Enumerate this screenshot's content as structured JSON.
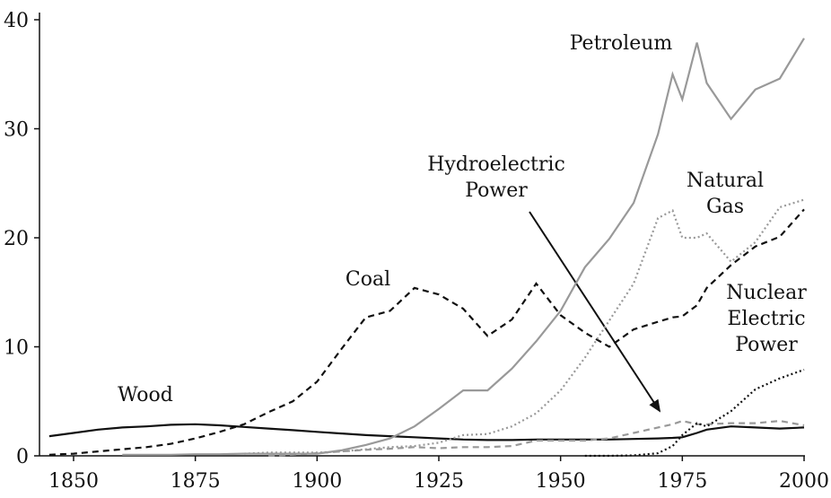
{
  "chart_data": {
    "type": "line",
    "x": [
      1845,
      1850,
      1855,
      1860,
      1865,
      1870,
      1875,
      1880,
      1885,
      1890,
      1895,
      1900,
      1905,
      1910,
      1915,
      1920,
      1925,
      1930,
      1935,
      1940,
      1945,
      1950,
      1955,
      1960,
      1965,
      1970,
      1973,
      1975,
      1978,
      1980,
      1985,
      1990,
      1995,
      2000
    ],
    "xlim": [
      1843,
      2000
    ],
    "xticks": [
      1850,
      1875,
      1900,
      1925,
      1950,
      1975,
      2000
    ],
    "ylim": [
      0,
      40
    ],
    "yticks": [
      0,
      10,
      20,
      30,
      40
    ],
    "series": [
      {
        "name": "Wood",
        "color": "#111111",
        "style": "solid",
        "values": [
          1.8,
          2.1,
          2.4,
          2.6,
          2.7,
          2.85,
          2.9,
          2.8,
          2.65,
          2.5,
          2.35,
          2.2,
          2.05,
          1.9,
          1.8,
          1.7,
          1.6,
          1.5,
          1.45,
          1.45,
          1.5,
          1.5,
          1.5,
          1.5,
          1.55,
          1.6,
          1.65,
          1.7,
          2.1,
          2.4,
          2.7,
          2.6,
          2.5,
          2.6
        ]
      },
      {
        "name": "Coal",
        "color": "#111111",
        "style": "dashed",
        "values": [
          0.1,
          0.2,
          0.4,
          0.6,
          0.8,
          1.1,
          1.6,
          2.2,
          2.9,
          4.0,
          5.0,
          6.8,
          9.8,
          12.7,
          13.3,
          15.4,
          14.8,
          13.5,
          11.0,
          12.5,
          15.8,
          12.9,
          11.3,
          10.0,
          11.6,
          12.3,
          12.7,
          12.8,
          13.8,
          15.4,
          17.5,
          19.2,
          20.1,
          22.6
        ]
      },
      {
        "name": "Petroleum",
        "color": "#999999",
        "style": "solid",
        "values": [
          null,
          null,
          null,
          0.1,
          0.1,
          0.1,
          0.15,
          0.15,
          0.2,
          0.2,
          0.2,
          0.2,
          0.5,
          1.0,
          1.6,
          2.7,
          4.3,
          6.0,
          6.0,
          8.0,
          10.5,
          13.3,
          17.3,
          19.9,
          23.2,
          29.5,
          35.0,
          32.7,
          37.9,
          34.2,
          30.9,
          33.6,
          34.6,
          38.3
        ]
      },
      {
        "name": "Natural Gas",
        "color": "#999999",
        "style": "dotted",
        "values": [
          null,
          null,
          null,
          null,
          null,
          null,
          null,
          null,
          0.2,
          0.3,
          0.3,
          0.3,
          0.4,
          0.6,
          0.8,
          0.9,
          1.2,
          1.9,
          2.0,
          2.7,
          3.9,
          6.0,
          9.0,
          12.4,
          15.8,
          21.8,
          22.5,
          20.0,
          20.0,
          20.4,
          17.8,
          19.6,
          22.8,
          23.5
        ]
      },
      {
        "name": "Hydroelectric Power",
        "color": "#999999",
        "style": "dashed",
        "values": [
          null,
          null,
          null,
          null,
          null,
          null,
          null,
          null,
          null,
          0.02,
          0.1,
          0.25,
          0.4,
          0.55,
          0.65,
          0.8,
          0.7,
          0.8,
          0.8,
          0.9,
          1.4,
          1.4,
          1.4,
          1.6,
          2.1,
          2.6,
          2.9,
          3.2,
          2.9,
          2.9,
          3.0,
          3.0,
          3.2,
          2.8
        ]
      },
      {
        "name": "Nuclear Electric Power",
        "color": "#111111",
        "style": "dotted",
        "values": [
          null,
          null,
          null,
          null,
          null,
          null,
          null,
          null,
          null,
          null,
          null,
          null,
          null,
          null,
          null,
          null,
          null,
          null,
          null,
          null,
          null,
          null,
          0,
          0,
          0.04,
          0.24,
          0.9,
          1.9,
          3.0,
          2.7,
          4.1,
          6.1,
          7.1,
          7.9
        ]
      }
    ]
  }
}
